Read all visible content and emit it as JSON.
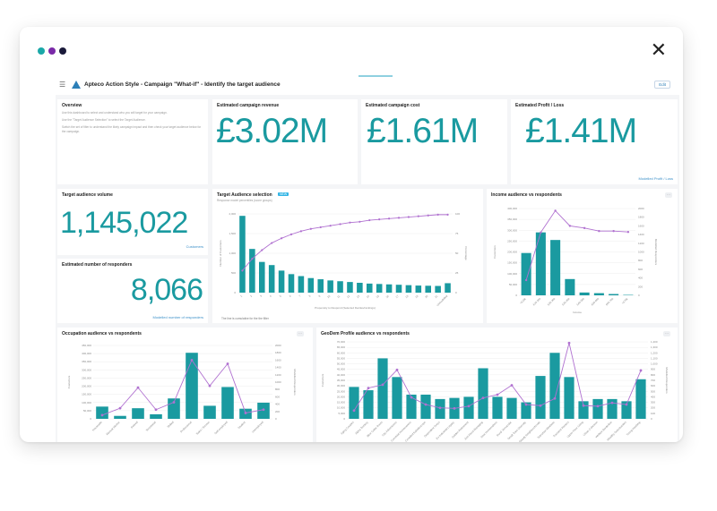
{
  "window": {
    "dots": [
      "#1aa8a8",
      "#7a2aa8",
      "#1a1a3a"
    ],
    "close_glyph": "✕"
  },
  "header": {
    "menu_glyph": "☰",
    "title": "Apteco Action Style - Campaign \"What-if\" - Identify the target audience",
    "edit_label": "Edit"
  },
  "overview": {
    "title": "Overview",
    "lines": [
      "Use this dashboard to select and understand who you will target for your campaign.",
      "Use the \"Target Audience Selection\" to select the Target Audience.",
      "Switch the set of filter to understand the likely campaign impact and then check your target audience below for the campaign."
    ]
  },
  "kpis": {
    "revenue": {
      "title": "Estimated campaign revenue",
      "value": "£3.02M"
    },
    "cost": {
      "title": "Estimated campaign cost",
      "value": "£1.61M"
    },
    "profit": {
      "title": "Estimated Profit / Loss",
      "value": "£1.41M",
      "link": "Modelled Profit / Loss"
    },
    "volume": {
      "title": "Target audience volume",
      "value": "1,145,022",
      "link": "Customers"
    },
    "responders": {
      "title": "Estimated number of responders",
      "value": "8,066",
      "link": "Modelled number of responders"
    }
  },
  "colors": {
    "teal": "#1a9aa0",
    "purple": "#b071d0",
    "grid": "#eeeeee"
  },
  "charts": {
    "target": {
      "title": "Target Audience selection",
      "badge": "NEW",
      "subtitle": "Response model percentiles (score groups)",
      "xlabel": "Propensity to Respond (Selected Deciles/rankings)",
      "ylabel_left": "Number of Customers",
      "ylabel_right": "Percentage",
      "legend": "The line is cumulative for the the filter",
      "ymax": 2000,
      "yticks": [
        "2,000",
        "1,500",
        "1,000",
        "500",
        "0"
      ],
      "yticks_right": [
        "100",
        "75",
        "50",
        "25",
        "0"
      ],
      "categories": [
        "1",
        "2",
        "3",
        "4",
        "5",
        "6",
        "7",
        "8",
        "9",
        "10",
        "11",
        "12",
        "13",
        "14",
        "15",
        "16",
        "17",
        "18",
        "19",
        "20",
        "21",
        "Unmodelled"
      ],
      "values": [
        1950,
        1110,
        780,
        700,
        560,
        470,
        420,
        370,
        340,
        310,
        290,
        270,
        250,
        230,
        220,
        210,
        200,
        190,
        180,
        175,
        170,
        240
      ],
      "cumulative": [
        28,
        43,
        54,
        63,
        69,
        74,
        78,
        81,
        83,
        85,
        87,
        89,
        90,
        92,
        93,
        94,
        95,
        96,
        97,
        98,
        99,
        99
      ]
    },
    "income": {
      "title": "Income audience vs respondents",
      "xlabel": "Income",
      "ylabel_left": "Customers",
      "ylabel_right": "Modelled Responders",
      "ymax": 400000,
      "yticks": [
        "400,000",
        "350,000",
        "300,000",
        "250,000",
        "200,000",
        "150,000",
        "100,000",
        "50,000",
        "0"
      ],
      "yticks_right": [
        "2000",
        "1800",
        "1600",
        "1400",
        "1200",
        "1000",
        "800",
        "600",
        "400",
        "200",
        "0"
      ],
      "categories": [
        "<£10k",
        "£10-20k",
        "£20-30k",
        "£30-40k",
        "£40-50k",
        "£50-60k",
        "£60-70k",
        ">£70k"
      ],
      "values": [
        195000,
        290000,
        255000,
        75000,
        13000,
        10000,
        6000,
        2000
      ],
      "responders": [
        350,
        1450,
        1950,
        1600,
        1550,
        1480,
        1480,
        1460
      ]
    },
    "occupation": {
      "title": "Occupation audience vs respondents",
      "xlabel": "",
      "ylabel_left": "Customers",
      "ylabel_right": "Modelled Responders",
      "ymax": 450000,
      "yticks": [
        "450,000",
        "400,000",
        "350,000",
        "300,000",
        "250,000",
        "200,000",
        "150,000",
        "100,000",
        "50,000",
        "0"
      ],
      "yticks_right": [
        "2000",
        "1800",
        "1600",
        "1400",
        "1200",
        "1000",
        "800",
        "600",
        "400",
        "200",
        "0"
      ],
      "categories": [
        "Housewife",
        "Manual Worker",
        "Retired",
        "Secretarial",
        "Skilled",
        "Professional",
        "Sales / Service",
        "Self employed",
        "Student",
        "Unemployed"
      ],
      "values": [
        75000,
        18000,
        65000,
        28000,
        125000,
        405000,
        80000,
        195000,
        62000,
        99000
      ],
      "responders": [
        100,
        290,
        850,
        250,
        450,
        1600,
        900,
        1500,
        160,
        250
      ]
    },
    "geodem": {
      "title": "GeoDem Profile audience vs respondents",
      "xlabel": "",
      "ylabel_left": "Customers",
      "ylabel_right": "Modelled Responders",
      "ymax": 70000,
      "yticks": [
        "70,000",
        "65,000",
        "60,000",
        "55,000",
        "50,000",
        "45,000",
        "40,000",
        "35,000",
        "30,000",
        "25,000",
        "20,000",
        "15,000",
        "10,000",
        "5,000",
        "0"
      ],
      "yticks_right": [
        "1,400",
        "1,300",
        "1,200",
        "1,100",
        "1,000",
        "900",
        "800",
        "700",
        "600",
        "500",
        "400",
        "300",
        "200",
        "100",
        "0"
      ],
      "categories": [
        "Aging Couples",
        "Alpha Territory",
        "Blue Collar Roots",
        "City Adventurers",
        "Convivial Homeowners",
        "Crowded Kaleidoscope",
        "Dependent Greys",
        "Ex-Industrial Legacy",
        "Golden Retirement",
        "Just About Managing",
        "New Homemakers",
        "Rural Vernacular",
        "Small Town Diversity",
        "Steady Neighbourhoods",
        "Suburban Mindsets",
        "Transient Renters",
        "Upper Floor Living",
        "Urban Cohesion",
        "Welfare Borderline",
        "Wealthy Suburbanites",
        "Young Hardship"
      ],
      "values": [
        29000,
        26000,
        55000,
        38000,
        22000,
        22000,
        18000,
        19000,
        20000,
        46000,
        20000,
        19000,
        15000,
        39000,
        60000,
        38000,
        16000,
        18000,
        18000,
        16000,
        36000
      ],
      "responders": [
        150,
        560,
        620,
        890,
        390,
        260,
        200,
        190,
        230,
        380,
        440,
        610,
        260,
        240,
        370,
        1380,
        240,
        230,
        290,
        260,
        880
      ]
    }
  }
}
